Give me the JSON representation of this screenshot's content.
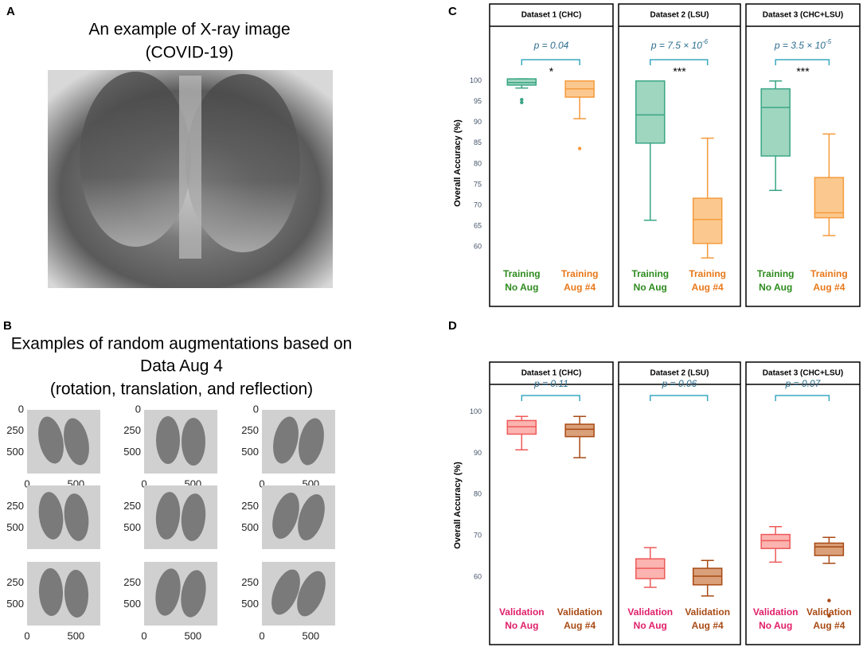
{
  "panel_labels": [
    "A",
    "B",
    "C",
    "D"
  ],
  "panel_a": {
    "title": [
      "An example of X-ray image",
      "(COVID-19)"
    ]
  },
  "panel_b": {
    "title": [
      "Examples of random augmentations based on",
      "Data Aug 4",
      "(rotation, translation, and reflection)"
    ],
    "thumbnail_axes": {
      "yticks": [
        0,
        250,
        500
      ],
      "xticks": [
        0,
        500
      ]
    }
  },
  "chart_data": [
    {
      "type": "box",
      "title": "Dataset 1 (CHC)",
      "ylabel": "Overall Accuracy (%)",
      "ylim": [
        46,
        113
      ],
      "yticks": [
        60,
        65,
        70,
        75,
        80,
        85,
        90,
        95,
        100
      ],
      "annotation": {
        "text": "p = 0.04",
        "significance": "*"
      },
      "categories": [
        [
          "Training",
          "No Aug"
        ],
        [
          "Training",
          "Aug #4"
        ]
      ],
      "boxes": [
        {
          "color": "#3aa585",
          "fill": "#9fd6c0",
          "label_color": "#2e8b1e",
          "min": 98.3,
          "q1": 99.0,
          "median": 99.6,
          "q3": 100.5,
          "max": 100.5,
          "outliers": [
            95.5,
            94.8
          ]
        },
        {
          "color": "#f59a3c",
          "fill": "#fbc98f",
          "label_color": "#e8781a",
          "min": 90.9,
          "q1": 96.1,
          "median": 98.1,
          "q3": 100,
          "max": 100,
          "outliers": [
            83.7
          ]
        }
      ]
    },
    {
      "type": "box",
      "title": "Dataset 2 (LSU)",
      "ylim": [
        46,
        113
      ],
      "annotation": {
        "text": "p = 7.5 × 10",
        "exponent": "-6",
        "significance": "***"
      },
      "categories": [
        [
          "Training",
          "No Aug"
        ],
        [
          "Training",
          "Aug #4"
        ]
      ],
      "boxes": [
        {
          "color": "#3aa585",
          "fill": "#9fd6c0",
          "label_color": "#2e8b1e",
          "min": 66.4,
          "q1": 85.0,
          "median": 91.8,
          "q3": 100,
          "max": 100,
          "outliers": []
        },
        {
          "color": "#f59a3c",
          "fill": "#fbc98f",
          "label_color": "#e8781a",
          "min": 57.3,
          "q1": 60.8,
          "median": 66.6,
          "q3": 71.7,
          "max": 86.2,
          "outliers": []
        }
      ]
    },
    {
      "type": "box",
      "title": "Dataset 3 (CHC+LSU)",
      "ylim": [
        46,
        113
      ],
      "annotation": {
        "text": "p = 3.5 × 10",
        "exponent": "-5",
        "significance": "***"
      },
      "categories": [
        [
          "Training",
          "No Aug"
        ],
        [
          "Training",
          "Aug #4"
        ]
      ],
      "boxes": [
        {
          "color": "#3aa585",
          "fill": "#9fd6c0",
          "label_color": "#2e8b1e",
          "min": 73.6,
          "q1": 81.9,
          "median": 93.6,
          "q3": 98.1,
          "max": 100,
          "outliers": []
        },
        {
          "color": "#f59a3c",
          "fill": "#fbc98f",
          "label_color": "#e8781a",
          "min": 62.7,
          "q1": 67.0,
          "median": 68.2,
          "q3": 76.7,
          "max": 87.2,
          "outliers": []
        }
      ]
    },
    {
      "type": "box",
      "title": "Dataset 1 (CHC)",
      "ylabel": "Overall Accuracy (%)",
      "ylim": [
        44,
        105.5
      ],
      "yticks": [
        60,
        70,
        80,
        90,
        100
      ],
      "annotation": {
        "text": "p = 0.11"
      },
      "categories": [
        [
          "Validation",
          "No Aug"
        ],
        [
          "Validation",
          "Aug #4"
        ]
      ],
      "boxes": [
        {
          "color": "#ee5a5a",
          "fill": "#fbb4b0",
          "label_color": "#e0206a",
          "min": 90.8,
          "q1": 94.6,
          "median": 96.4,
          "q3": 97.9,
          "max": 98.9,
          "outliers": []
        },
        {
          "color": "#a84a14",
          "fill": "#d9a07a",
          "label_color": "#a84a14",
          "min": 88.9,
          "q1": 94.0,
          "median": 95.8,
          "q3": 97.0,
          "max": 98.9,
          "outliers": []
        }
      ]
    },
    {
      "type": "box",
      "title": "Dataset 2 (LSU)",
      "ylim": [
        44,
        105.5
      ],
      "annotation": {
        "text": "p = 0.06"
      },
      "categories": [
        [
          "Validation",
          "No Aug"
        ],
        [
          "Validation",
          "Aug #4"
        ]
      ],
      "boxes": [
        {
          "color": "#ee5a5a",
          "fill": "#fbb4b0",
          "label_color": "#e0206a",
          "min": 57.5,
          "q1": 59.6,
          "median": 62.1,
          "q3": 64.4,
          "max": 67.1,
          "outliers": []
        },
        {
          "color": "#a84a14",
          "fill": "#d9a07a",
          "label_color": "#a84a14",
          "min": 55.4,
          "q1": 58.1,
          "median": 60.2,
          "q3": 62.1,
          "max": 64.0,
          "outliers": []
        }
      ]
    },
    {
      "type": "box",
      "title": "Dataset 3 (CHC+LSU)",
      "ylim": [
        44,
        105.5
      ],
      "annotation": {
        "text": "p = 0.07"
      },
      "categories": [
        [
          "Validation",
          "No Aug"
        ],
        [
          "Validation",
          "Aug #4"
        ]
      ],
      "boxes": [
        {
          "color": "#ee5a5a",
          "fill": "#fbb4b0",
          "label_color": "#e0206a",
          "min": 63.6,
          "q1": 66.9,
          "median": 68.8,
          "q3": 70.3,
          "max": 72.2,
          "outliers": []
        },
        {
          "color": "#a84a14",
          "fill": "#d9a07a",
          "label_color": "#a84a14",
          "min": 63.3,
          "q1": 65.2,
          "median": 67.3,
          "q3": 68.2,
          "max": 69.6,
          "outliers": [
            54.3,
            50.6
          ]
        }
      ]
    }
  ]
}
